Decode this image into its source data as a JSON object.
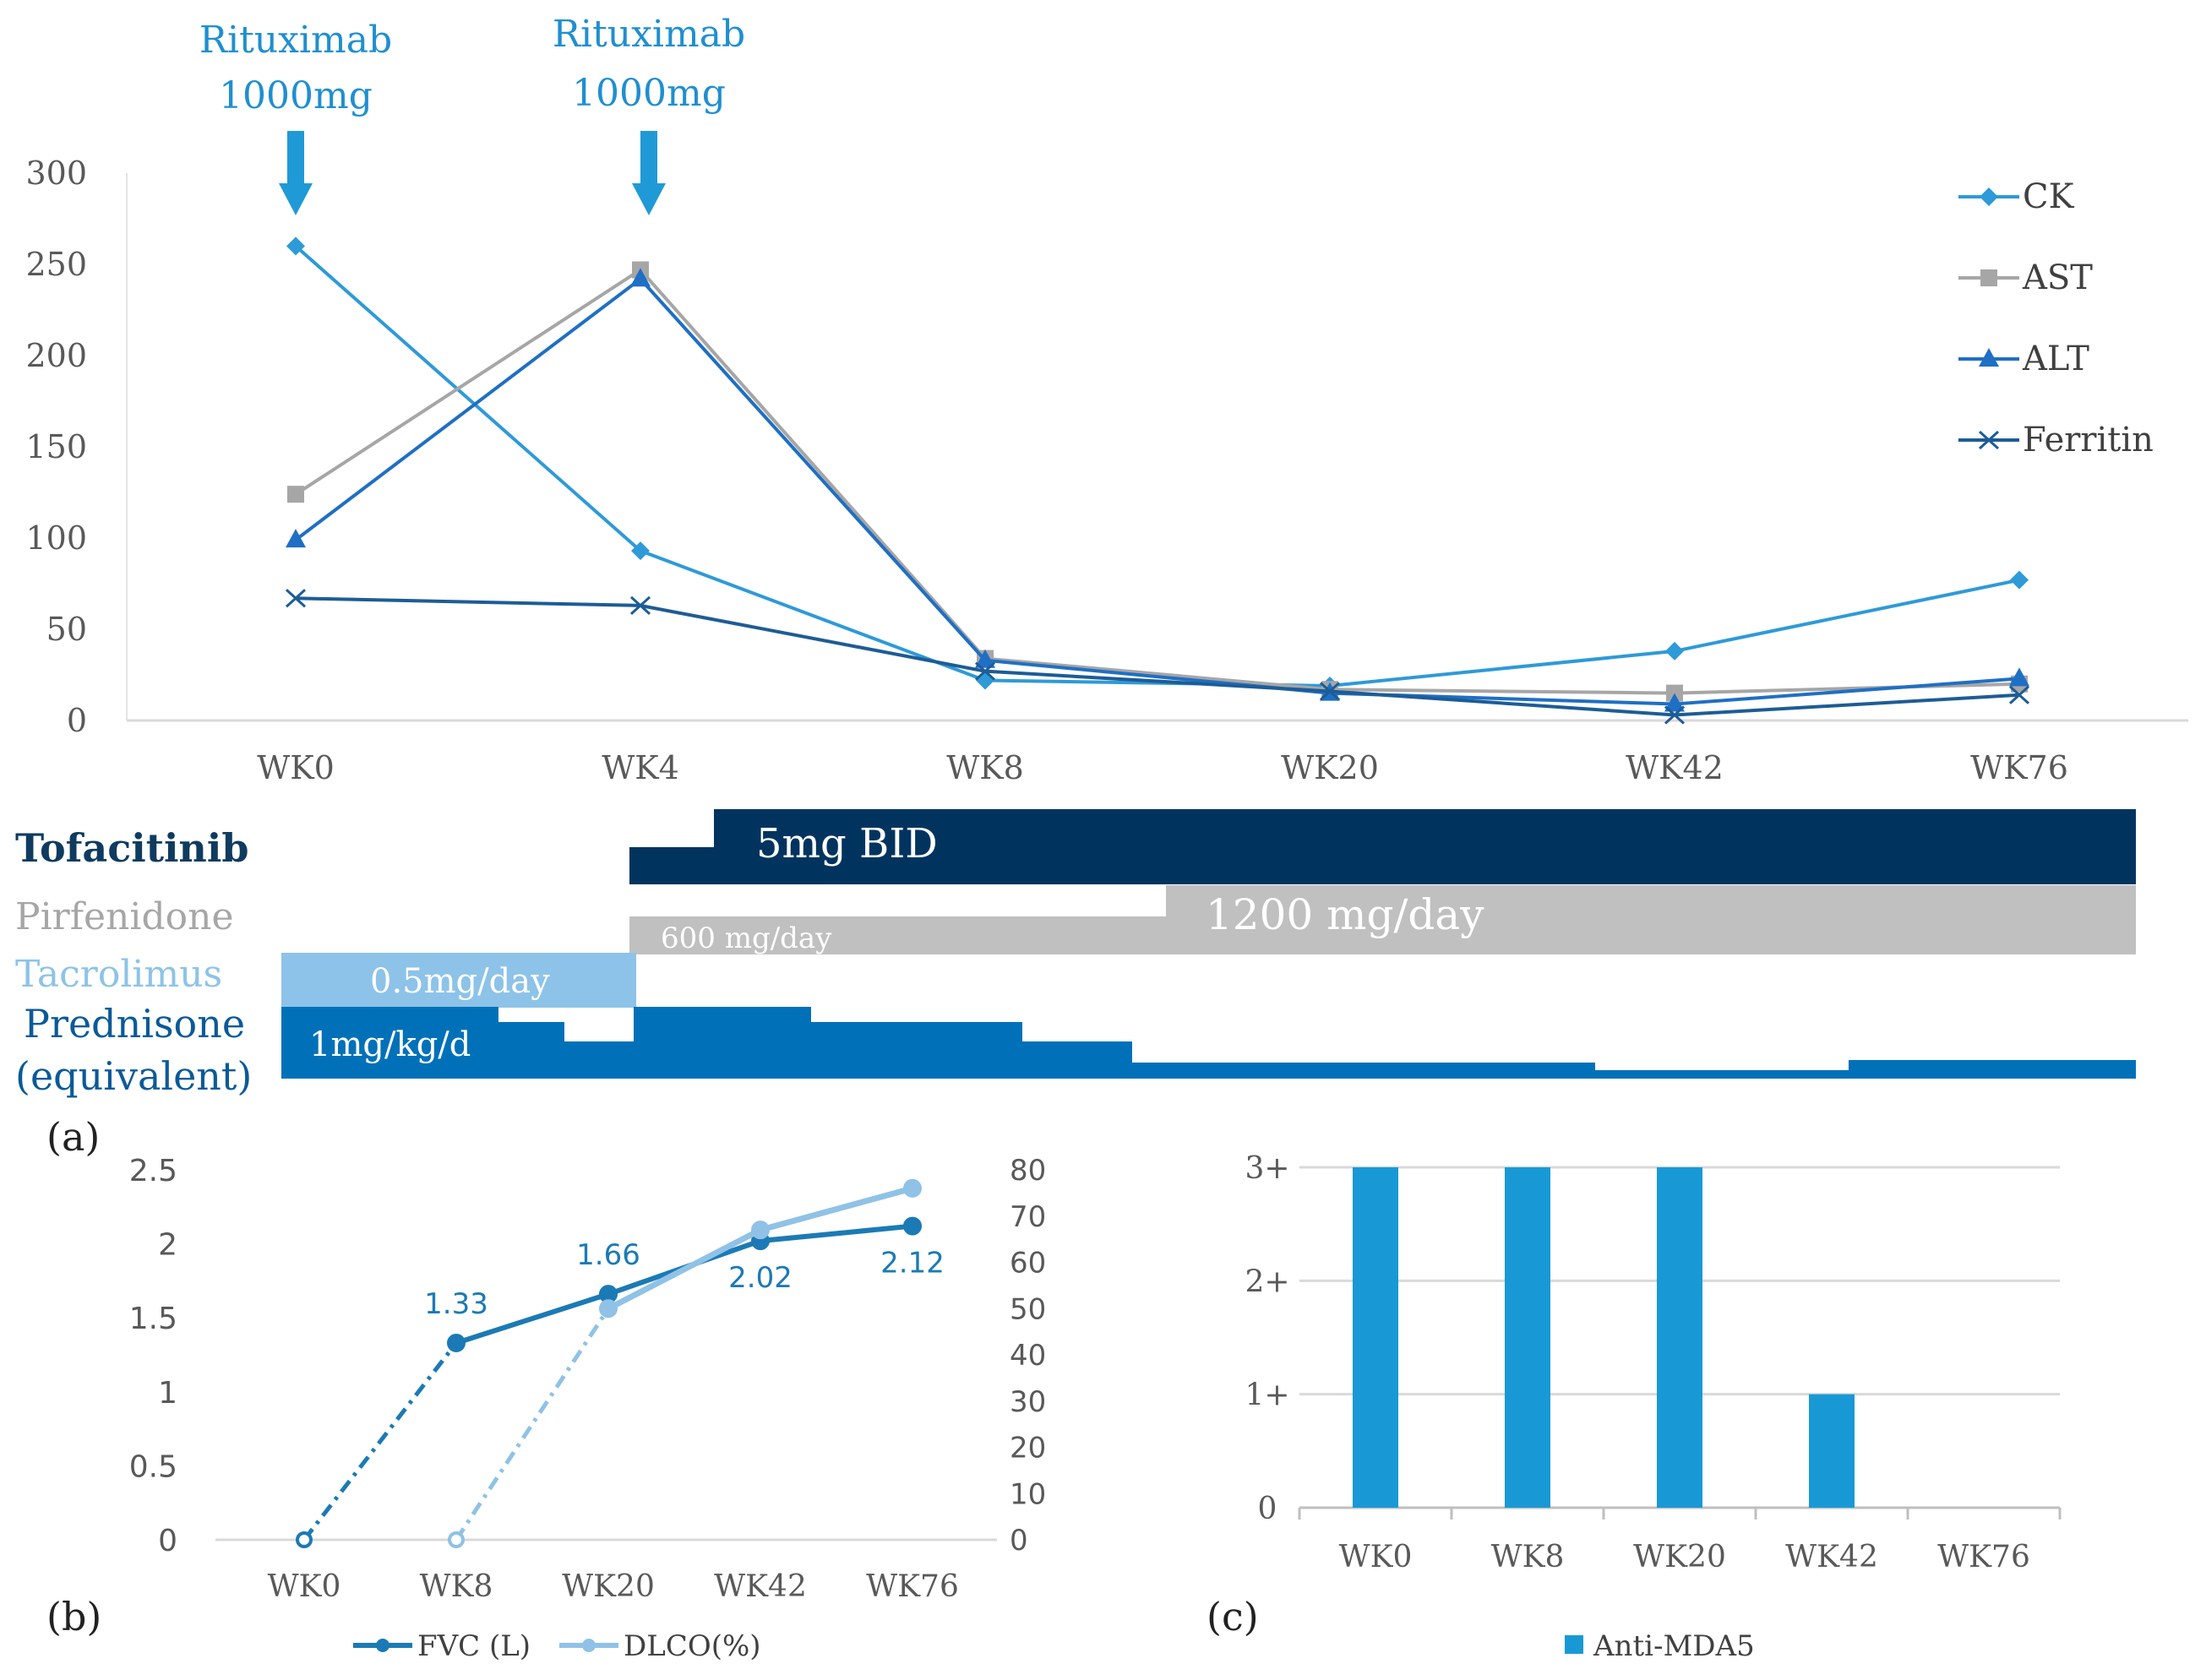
{
  "colors": {
    "ck": "#2e9ad8",
    "ast": "#a6a6a6",
    "alt": "#1f6fc4",
    "ferritin": "#1d5c96",
    "tofacitinib": "#00345f",
    "pirfenidone": "#c0c0c0",
    "tacrolimus": "#8dc3e8",
    "prednisone": "#0071b8",
    "fvc": "#1b7ab5",
    "dlco": "#8fc2e6",
    "mda5": "#1899d6",
    "grid": "#d9d9d9",
    "axis_text": "#595959"
  },
  "panel_labels": {
    "a": "(a)",
    "b": "(b)",
    "c": "(c)"
  },
  "annotations": [
    {
      "line1": "Rituximab",
      "line2": "1000mg",
      "category": "WK0"
    },
    {
      "line1": "Rituximab",
      "line2": "1000mg",
      "category": "WK4"
    }
  ],
  "treatment_labels": {
    "tofacitinib": "Tofacitinib",
    "pirfenidone": "Pirfenidone",
    "tacrolimus": "Tacrolimus",
    "prednisone_line1": "Prednisone",
    "prednisone_line2": "(equivalent)"
  },
  "treatment_bar_labels": {
    "tofacitinib": "5mg BID",
    "pirfenidone_low": "600 mg/day",
    "pirfenidone_high": "1200 mg/day",
    "tacrolimus": "0.5mg/day",
    "prednisone": "1mg/kg/d"
  },
  "chart_data": [
    {
      "type": "line",
      "title": "",
      "categories": [
        "WK0",
        "WK4",
        "WK8",
        "WK20",
        "WK42",
        "WK76"
      ],
      "ylim": [
        0,
        300
      ],
      "yticks": [
        0,
        50,
        100,
        150,
        200,
        250,
        300
      ],
      "grid": false,
      "legend": "right",
      "series": [
        {
          "name": "CK",
          "marker": "diamond",
          "values": [
            260,
            93,
            22,
            19,
            38,
            77
          ]
        },
        {
          "name": "AST",
          "marker": "square",
          "values": [
            124,
            247,
            34,
            17,
            15,
            20
          ]
        },
        {
          "name": "ALT",
          "marker": "triangle",
          "values": [
            99,
            242,
            33,
            15,
            9,
            23
          ]
        },
        {
          "name": "Ferritin",
          "marker": "x",
          "values": [
            67,
            63,
            27,
            16,
            3,
            14
          ]
        }
      ]
    },
    {
      "type": "line",
      "title": "",
      "categories": [
        "WK0",
        "WK8",
        "WK20",
        "WK42",
        "WK76"
      ],
      "ylim": [
        0,
        2.5
      ],
      "yticks": [
        0,
        0.5,
        1,
        1.5,
        2,
        2.5
      ],
      "y2lim": [
        0,
        80
      ],
      "y2ticks": [
        0,
        10,
        20,
        30,
        40,
        50,
        60,
        70,
        80
      ],
      "grid": false,
      "legend": "bottom",
      "series": [
        {
          "name": "FVC (L)",
          "axis": "left",
          "values": [
            0,
            1.33,
            1.66,
            2.02,
            2.12
          ],
          "data_labels": [
            "",
            "1.33",
            "1.66",
            "2.02",
            "2.12"
          ]
        },
        {
          "name": "DLCO(%)",
          "axis": "right",
          "values": [
            null,
            0,
            50,
            67,
            76
          ]
        }
      ]
    },
    {
      "type": "bar",
      "title": "",
      "categories": [
        "WK0",
        "WK8",
        "WK20",
        "WK42",
        "WK76"
      ],
      "values": [
        3,
        3,
        3,
        1,
        0
      ],
      "ylim": [
        0,
        3
      ],
      "ytick_labels": [
        "0",
        "1+",
        "2+",
        "3+"
      ],
      "grid": true,
      "legend": "bottom",
      "series_name": "Anti-MDA5"
    }
  ]
}
